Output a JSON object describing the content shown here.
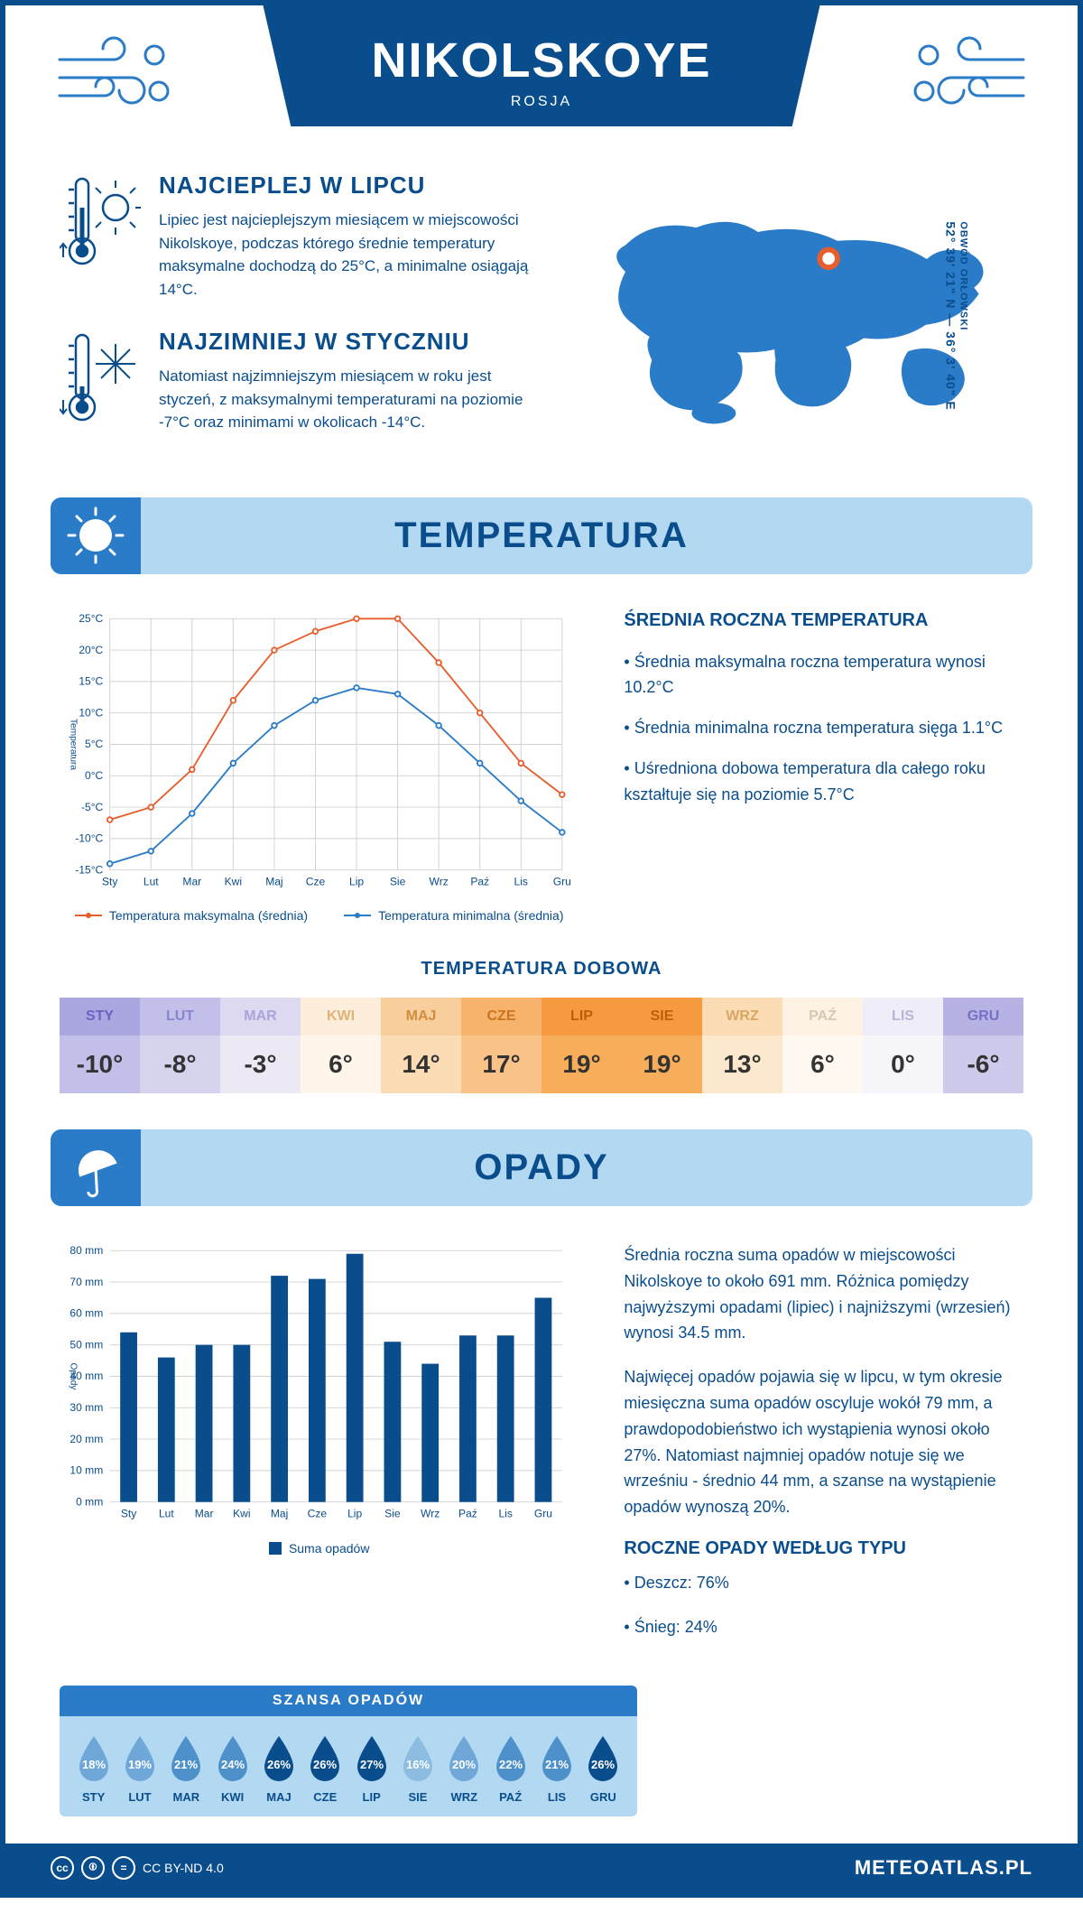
{
  "colors": {
    "primary": "#0a4d8c",
    "secondary": "#2a7bc8",
    "light_blue": "#b3d9f2",
    "orange_line": "#e85d2c",
    "blue_line": "#2a7bc8",
    "grid": "#d0d0d0",
    "text": "#0a4d8c"
  },
  "header": {
    "title": "NIKOLSKOYE",
    "subtitle": "ROSJA"
  },
  "intro": {
    "hot": {
      "title": "NAJCIEPLEJ W LIPCU",
      "text": "Lipiec jest najcieplejszym miesiącem w miejscowości Nikolskoye, podczas którego średnie temperatury maksymalne dochodzą do 25°C, a minimalne osiągają 14°C."
    },
    "cold": {
      "title": "NAJZIMNIEJ W STYCZNIU",
      "text": "Natomiast najzimniejszym miesiącem w roku jest styczeń, z maksymalnymi temperaturami na poziomie -7°C oraz minimami w okolicach -14°C."
    },
    "coords_line": "52° 39' 21\" N — 36° 3' 40\" E",
    "region": "OBWÓD ORŁOWSKI",
    "map_marker": {
      "lon": 36.06,
      "lat": 52.66
    }
  },
  "temperature": {
    "section_title": "TEMPERATURA",
    "chart": {
      "type": "line",
      "y_axis_label": "Temperatura",
      "months": [
        "Sty",
        "Lut",
        "Mar",
        "Kwi",
        "Maj",
        "Cze",
        "Lip",
        "Sie",
        "Wrz",
        "Paź",
        "Lis",
        "Gru"
      ],
      "max": [
        -7,
        -5,
        1,
        12,
        20,
        23,
        25,
        25,
        18,
        10,
        2,
        -3
      ],
      "min": [
        -14,
        -12,
        -6,
        2,
        8,
        12,
        14,
        13,
        8,
        2,
        -4,
        -9
      ],
      "ylim": [
        -15,
        25
      ],
      "ytick_step": 5,
      "max_color": "#e85d2c",
      "min_color": "#2a7bc8",
      "grid_color": "#d0d0d0",
      "line_width": 2,
      "marker_radius": 3
    },
    "legend": {
      "max": "Temperatura maksymalna (średnia)",
      "min": "Temperatura minimalna (średnia)"
    },
    "info": {
      "title": "ŚREDNIA ROCZNA TEMPERATURA",
      "p1": "• Średnia maksymalna roczna temperatura wynosi 10.2°C",
      "p2": "• Średnia minimalna roczna temperatura sięga 1.1°C",
      "p3": "• Uśredniona dobowa temperatura dla całego roku kształtuje się na poziomie 5.7°C"
    },
    "daily": {
      "title": "TEMPERATURA DOBOWA",
      "months": [
        "STY",
        "LUT",
        "MAR",
        "KWI",
        "MAJ",
        "CZE",
        "LIP",
        "SIE",
        "WRZ",
        "PAŹ",
        "LIS",
        "GRU"
      ],
      "values": [
        "-10°",
        "-8°",
        "-3°",
        "6°",
        "14°",
        "17°",
        "19°",
        "19°",
        "13°",
        "6°",
        "0°",
        "-6°"
      ],
      "header_bg": [
        "#a9a6e0",
        "#c2bfe8",
        "#ddd9f0",
        "#fdeedb",
        "#f9ce9d",
        "#f7b26b",
        "#f59a3e",
        "#f59a3e",
        "#fbdcb5",
        "#fdf2e3",
        "#efeef8",
        "#b6b3e4"
      ],
      "header_fg": [
        "#6a62c4",
        "#8b84d0",
        "#a9a3dc",
        "#e0b276",
        "#d18d3e",
        "#c97520",
        "#bf5e09",
        "#bf5e09",
        "#d9a560",
        "#d7c9b0",
        "#b8b5d8",
        "#7770c9"
      ],
      "value_bg": [
        "#c2bfe8",
        "#d6d3ee",
        "#ece9f5",
        "#fef6ea",
        "#fbdcb5",
        "#f9c387",
        "#f7ad5a",
        "#f7ad5a",
        "#fce8cd",
        "#fef8f0",
        "#f6f5fa",
        "#cdcaeb"
      ]
    }
  },
  "precipitation": {
    "section_title": "OPADY",
    "chart": {
      "type": "bar",
      "y_axis_label": "Opady",
      "months": [
        "Sty",
        "Lut",
        "Mar",
        "Kwi",
        "Maj",
        "Cze",
        "Lip",
        "Sie",
        "Wrz",
        "Paź",
        "Lis",
        "Gru"
      ],
      "values": [
        54,
        46,
        50,
        50,
        72,
        71,
        79,
        51,
        44,
        53,
        53,
        65
      ],
      "ylim": [
        0,
        80
      ],
      "ytick_step": 10,
      "bar_color": "#0a4d8c",
      "grid_color": "#d0d0d0",
      "bar_width": 0.45,
      "legend": "Suma opadów"
    },
    "info": {
      "p1": "Średnia roczna suma opadów w miejscowości Nikolskoye to około 691 mm. Różnica pomiędzy najwyższymi opadami (lipiec) i najniższymi (wrzesień) wynosi 34.5 mm.",
      "p2": "Najwięcej opadów pojawia się w lipcu, w tym okresie miesięczna suma opadów oscyluje wokół 79 mm, a prawdopodobieństwo ich wystąpienia wynosi około 27%. Natomiast najmniej opadów notuje się we wrześniu - średnio 44 mm, a szanse na wystąpienie opadów wynoszą 20%.",
      "by_type_title": "ROCZNE OPADY WEDŁUG TYPU",
      "rain": "• Deszcz: 76%",
      "snow": "• Śnieg: 24%"
    },
    "chance": {
      "title": "SZANSA OPADÓW",
      "months": [
        "STY",
        "LUT",
        "MAR",
        "KWI",
        "MAJ",
        "CZE",
        "LIP",
        "SIE",
        "WRZ",
        "PAŹ",
        "LIS",
        "GRU"
      ],
      "values": [
        "18%",
        "19%",
        "21%",
        "24%",
        "26%",
        "26%",
        "27%",
        "16%",
        "20%",
        "22%",
        "21%",
        "26%"
      ],
      "drop_colors": [
        "#6fa8d8",
        "#6fa8d8",
        "#4d90ca",
        "#4d90ca",
        "#0a4d8c",
        "#0a4d8c",
        "#0a4d8c",
        "#8cbce0",
        "#6fa8d8",
        "#4d90ca",
        "#4d90ca",
        "#0a4d8c"
      ]
    }
  },
  "footer": {
    "license": "CC BY-ND 4.0",
    "brand": "METEOATLAS.PL"
  }
}
